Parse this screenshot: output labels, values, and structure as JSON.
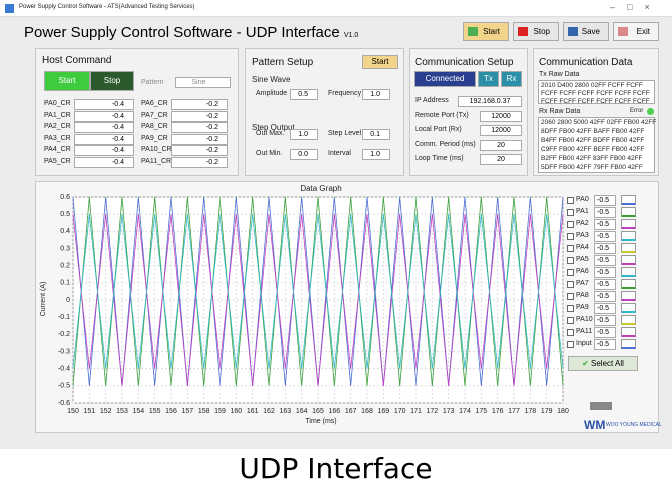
{
  "window": {
    "title": "Power Supply Control Software - ATS(Advanced Testing Services)"
  },
  "header": {
    "title": "Power Supply Control Software - ",
    "subtitle": "UDP Interface",
    "version": "V1.0",
    "buttons": [
      "Start",
      "Stop",
      "Save",
      "Exit"
    ]
  },
  "host_command": {
    "title": "Host Command",
    "start": "Start",
    "stop": "Stop",
    "pattern_label": "Pattern",
    "pattern_value": "Sine",
    "left_rows": [
      {
        "label": "PA0_CR",
        "value": "-0.4"
      },
      {
        "label": "PA1_CR",
        "value": "-0.4"
      },
      {
        "label": "PA2_CR",
        "value": "-0.4"
      },
      {
        "label": "PA3_CR",
        "value": "-0.4"
      },
      {
        "label": "PA4_CR",
        "value": "-0.4"
      },
      {
        "label": "PA5_CR",
        "value": "-0.4"
      }
    ],
    "right_rows": [
      {
        "label": "PA6_CR",
        "value": "-0.2"
      },
      {
        "label": "PA7_CR",
        "value": "-0.2"
      },
      {
        "label": "PA8_CR",
        "value": "-0.2"
      },
      {
        "label": "PA9_CR",
        "value": "-0.2"
      },
      {
        "label": "PA10_CR",
        "value": "-0.2"
      },
      {
        "label": "PA11_CR",
        "value": "-0.2"
      }
    ]
  },
  "pattern_setup": {
    "title": "Pattern Setup",
    "start": "Start",
    "sine_title": "Sine Wave",
    "amplitude": {
      "label": "Amplitude",
      "value": "0.5"
    },
    "frequency": {
      "label": "Frequency",
      "value": "1.0"
    },
    "step_title": "Step Output",
    "out_max": {
      "label": "Out Max.",
      "value": "1.0"
    },
    "step_level": {
      "label": "Step Level",
      "value": "0.1"
    },
    "out_min": {
      "label": "Out Min.",
      "value": "0.0"
    },
    "interval": {
      "label": "Interval",
      "value": "1.0"
    }
  },
  "comm_setup": {
    "title": "Communication Setup",
    "connected": "Connected",
    "tx": "Tx",
    "rx": "Rx",
    "fields": [
      {
        "label": "IP Address",
        "value": "192.168.0.37"
      },
      {
        "label": "Remote Port (Tx)",
        "value": "12000"
      },
      {
        "label": "Local Port (Rx)",
        "value": "12000"
      },
      {
        "label": "Comm. Period (ms)",
        "value": "20"
      },
      {
        "label": "Loop Time (ms)",
        "value": "20"
      }
    ]
  },
  "comm_data": {
    "title": "Communication Data",
    "tx_label": "Tx Raw Data",
    "tx_lines": [
      "2010 D400 2800 02FF FCFF FCFF",
      "FCFF FCFF FCFF FCFF FCFF FCFF",
      "FCFF FCFF FCFF FCFF FCFF FCFF"
    ],
    "rx_label": "Rx Raw Data",
    "error": "Error",
    "rx_lines": [
      "2060 2800 5000 42FF 02FF FB00 42FF",
      "8DFF FB00 42FF BAFF FB00 42FF",
      "B4FF FB00 42FF BDFF FB00 42FF",
      "C9FF FB00 42FF BEFF FB00 42FF",
      "B2FF FB00 42FF 83FF FB00 42FF",
      "5DFF FB00 42FF 79FF FB00 42FF"
    ]
  },
  "chart_data": {
    "type": "line",
    "title": "Data Graph",
    "xlabel": "Time (ms)",
    "ylabel": "Current (A)",
    "x": [
      150,
      151,
      152,
      153,
      154,
      155,
      156,
      157,
      158,
      159,
      160,
      161,
      162,
      163,
      164,
      165,
      166,
      167,
      168,
      169,
      170,
      171,
      172,
      173,
      174,
      175,
      176,
      177,
      178,
      179,
      180
    ],
    "series": [
      {
        "color": "#4a6fd6",
        "values": [
          0.6,
          -0.5,
          0.6,
          -0.5,
          0.6,
          -0.5,
          0.6,
          -0.5,
          0.6,
          -0.5,
          0.6,
          -0.5,
          0.6,
          -0.5,
          0.6,
          -0.5,
          0.6,
          -0.5,
          0.6,
          -0.5,
          0.6,
          -0.5,
          0.6,
          -0.5,
          0.6,
          -0.5,
          0.6,
          -0.5,
          0.6,
          -0.5,
          0.6
        ]
      },
      {
        "color": "#3aa03a",
        "values": [
          -0.5,
          0.6,
          -0.5,
          0.6,
          -0.5,
          0.6,
          -0.5,
          0.6,
          -0.5,
          0.6,
          -0.5,
          0.6,
          -0.5,
          0.6,
          -0.5,
          0.6,
          -0.5,
          0.6,
          -0.5,
          0.6,
          -0.5,
          0.6,
          -0.5,
          0.6,
          -0.5,
          0.6,
          -0.5,
          0.6,
          -0.5,
          0.6,
          -0.5
        ]
      },
      {
        "color": "#c040c0",
        "values": [
          0.5,
          -0.4,
          0.5,
          -0.5,
          0.5,
          -0.4,
          0.5,
          -0.5,
          0.5,
          -0.4,
          0.5,
          -0.5,
          0.5,
          -0.4,
          0.5,
          -0.5,
          0.5,
          -0.4,
          0.5,
          -0.5,
          0.5,
          -0.4,
          0.5,
          -0.5,
          0.5,
          -0.4,
          0.5,
          -0.5,
          0.5,
          -0.4,
          0.5
        ]
      },
      {
        "color": "#30b8c8",
        "values": [
          -0.4,
          0.5,
          -0.4,
          0.5,
          -0.4,
          0.5,
          -0.4,
          0.5,
          -0.4,
          0.5,
          -0.4,
          0.5,
          -0.4,
          0.5,
          -0.4,
          0.5,
          -0.4,
          0.5,
          -0.4,
          0.5,
          -0.4,
          0.5,
          -0.4,
          0.5,
          -0.4,
          0.5,
          -0.4,
          0.5,
          -0.4,
          0.5,
          -0.4
        ]
      }
    ],
    "xlim": [
      150,
      180
    ],
    "ylim": [
      -0.6,
      0.6
    ],
    "xticks": [
      150,
      151,
      152,
      153,
      154,
      155,
      156,
      157,
      158,
      159,
      160,
      161,
      162,
      163,
      164,
      165,
      166,
      167,
      168,
      169,
      170,
      171,
      172,
      173,
      174,
      175,
      176,
      177,
      178,
      179,
      180
    ],
    "yticks": [
      -0.6,
      -0.5,
      -0.4,
      -0.3,
      -0.2,
      -0.1,
      0,
      0.1,
      0.2,
      0.3,
      0.4,
      0.5,
      0.6
    ],
    "grid": true
  },
  "channels": {
    "items": [
      {
        "name": "PA0",
        "value": "-0.5"
      },
      {
        "name": "PA1",
        "value": "-0.5"
      },
      {
        "name": "PA2",
        "value": "-0.5"
      },
      {
        "name": "PA3",
        "value": "-0.5"
      },
      {
        "name": "PA4",
        "value": "-0.5"
      },
      {
        "name": "PA5",
        "value": "-0.5"
      },
      {
        "name": "PA6",
        "value": "-0.5"
      },
      {
        "name": "PA7",
        "value": "-0.5"
      },
      {
        "name": "PA8",
        "value": "-0.5"
      },
      {
        "name": "PA9",
        "value": "-0.5"
      },
      {
        "name": "PA10",
        "value": "-0.5"
      },
      {
        "name": "PA11",
        "value": "-0.5"
      },
      {
        "name": "Input",
        "value": "-0.5"
      }
    ],
    "select_all": "Select All"
  },
  "logo": "WOO YOUNG MEDICAL",
  "caption": "UDP Interface"
}
